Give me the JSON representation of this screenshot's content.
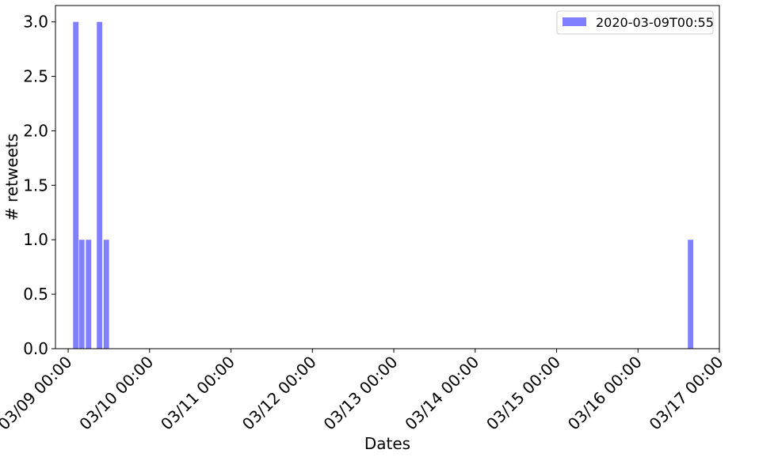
{
  "chart_data": {
    "type": "bar",
    "xlabel": "Dates",
    "ylabel": "# retweets",
    "legend": {
      "entries": [
        "2020-03-09T00:55"
      ],
      "placement": "top-right"
    },
    "grid": false,
    "colors": {
      "bar": "#8080ff",
      "axis": "#000000"
    },
    "xlim": [
      "2020-03-08T20:15",
      "2020-03-17T00:00"
    ],
    "ylim": [
      0,
      3.15
    ],
    "x_ticks": [
      {
        "value": "2020-03-09T00:00",
        "label": "03/09 00:00"
      },
      {
        "value": "2020-03-10T00:00",
        "label": "03/10 00:00"
      },
      {
        "value": "2020-03-11T00:00",
        "label": "03/11 00:00"
      },
      {
        "value": "2020-03-12T00:00",
        "label": "03/12 00:00"
      },
      {
        "value": "2020-03-13T00:00",
        "label": "03/13 00:00"
      },
      {
        "value": "2020-03-14T00:00",
        "label": "03/14 00:00"
      },
      {
        "value": "2020-03-15T00:00",
        "label": "03/15 00:00"
      },
      {
        "value": "2020-03-16T00:00",
        "label": "03/16 00:00"
      },
      {
        "value": "2020-03-17T00:00",
        "label": "03/17 00:00"
      }
    ],
    "y_ticks": [
      {
        "value": 0,
        "label": "0.0"
      },
      {
        "value": 0.5,
        "label": "0.5"
      },
      {
        "value": 1,
        "label": "1.0"
      },
      {
        "value": 1.5,
        "label": "1.5"
      },
      {
        "value": 2,
        "label": "2.0"
      },
      {
        "value": 2.5,
        "label": "2.5"
      },
      {
        "value": 3,
        "label": "3.0"
      }
    ],
    "series": [
      {
        "name": "2020-03-09T00:55",
        "bar_width_hours": 1.6,
        "points": [
          {
            "x": "2020-03-09T02:15",
            "y": 3
          },
          {
            "x": "2020-03-09T04:00",
            "y": 1
          },
          {
            "x": "2020-03-09T06:00",
            "y": 1
          },
          {
            "x": "2020-03-09T09:15",
            "y": 3
          },
          {
            "x": "2020-03-09T11:15",
            "y": 1
          },
          {
            "x": "2020-03-16T15:30",
            "y": 1
          }
        ]
      }
    ]
  }
}
